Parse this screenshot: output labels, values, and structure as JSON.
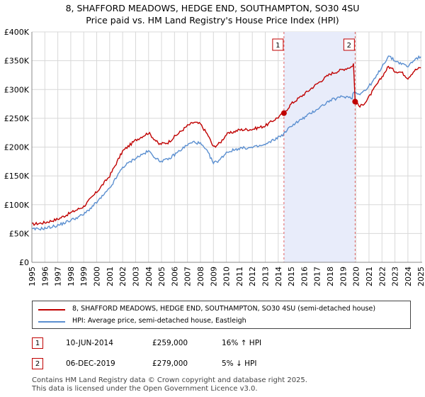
{
  "title_line1": "8, SHAFFORD MEADOWS, HEDGE END, SOUTHAMPTON, SO30 4SU",
  "title_line2": "Price paid vs. HM Land Registry's House Price Index (HPI)",
  "chart_data": {
    "type": "line",
    "x_range": [
      1995,
      2025.1
    ],
    "ylim": [
      0,
      400000
    ],
    "y_ticks": [
      0,
      50000,
      100000,
      150000,
      200000,
      250000,
      300000,
      350000,
      400000
    ],
    "y_tick_labels": [
      "£0",
      "£50K",
      "£100K",
      "£150K",
      "£200K",
      "£250K",
      "£300K",
      "£350K",
      "£400K"
    ],
    "x_ticks": [
      1995,
      1996,
      1997,
      1998,
      1999,
      2000,
      2001,
      2002,
      2003,
      2004,
      2005,
      2006,
      2007,
      2008,
      2009,
      2010,
      2011,
      2012,
      2013,
      2014,
      2015,
      2016,
      2017,
      2018,
      2019,
      2020,
      2021,
      2022,
      2023,
      2024,
      2025
    ],
    "grid": true,
    "shaded_region": [
      2014.44,
      2019.93
    ],
    "series": [
      {
        "name": "8, SHAFFORD MEADOWS, HEDGE END, SOUTHAMPTON, SO30 4SU (semi-detached house)",
        "color": "#c00000",
        "x": [
          1995,
          1996,
          1997,
          1998,
          1999,
          2000,
          2001,
          2002,
          2003,
          2004,
          2004.8,
          2005.5,
          2006,
          2007,
          2007.5,
          2008,
          2008.6,
          2009,
          2009.5,
          2010,
          2011,
          2012,
          2013,
          2014,
          2014.44,
          2015,
          2016,
          2017,
          2018,
          2019,
          2019.7,
          2019.8,
          2019.93,
          2020.3,
          2020.8,
          2021.5,
          2022,
          2022.5,
          2023,
          2023.5,
          2024,
          2024.5,
          2025
        ],
        "y": [
          66000,
          69000,
          75000,
          86000,
          97000,
          122000,
          150000,
          193000,
          212000,
          225000,
          205000,
          208000,
          218000,
          237000,
          243000,
          240000,
          220000,
          200000,
          207000,
          222000,
          230000,
          231000,
          237000,
          252000,
          259000,
          275000,
          292000,
          310000,
          327000,
          335000,
          340000,
          345000,
          279000,
          270000,
          280000,
          305000,
          322000,
          340000,
          332000,
          330000,
          320000,
          333000,
          338000
        ]
      },
      {
        "name": "HPI: Average price, semi-detached house, Eastleigh",
        "color": "#5b8fd0",
        "x": [
          1995,
          1996,
          1997,
          1998,
          1999,
          2000,
          2001,
          2002,
          2003,
          2004,
          2004.8,
          2005.5,
          2006,
          2007,
          2007.5,
          2008,
          2008.6,
          2009,
          2009.5,
          2010,
          2011,
          2012,
          2013,
          2014,
          2014.44,
          2015,
          2016,
          2017,
          2018,
          2019,
          2019.7,
          2019.8,
          2019.93,
          2020.3,
          2020.8,
          2021.5,
          2022,
          2022.5,
          2023,
          2023.5,
          2024,
          2024.5,
          2025
        ],
        "y": [
          57000,
          59000,
          64000,
          73000,
          83000,
          104000,
          128000,
          165000,
          181000,
          193000,
          176000,
          178000,
          187000,
          204000,
          209000,
          206000,
          190000,
          172000,
          178000,
          191000,
          198000,
          199000,
          204000,
          217000,
          223000,
          237000,
          251000,
          266000,
          281000,
          288000,
          286000,
          296000,
          295000,
          293000,
          300000,
          320000,
          340000,
          358000,
          350000,
          345000,
          340000,
          352000,
          357000
        ]
      }
    ],
    "markers": [
      {
        "label": "1",
        "x": 2014.44,
        "y": 259000
      },
      {
        "label": "2",
        "x": 2019.93,
        "y": 279000
      }
    ]
  },
  "legend": {
    "red_label": "8, SHAFFORD MEADOWS, HEDGE END, SOUTHAMPTON, SO30 4SU (semi-detached house)",
    "blue_label": "HPI: Average price, semi-detached house, Eastleigh"
  },
  "sales": [
    {
      "num": "1",
      "date": "10-JUN-2014",
      "price": "£259,000",
      "hpi": "16% ↑ HPI"
    },
    {
      "num": "2",
      "date": "06-DEC-2019",
      "price": "£279,000",
      "hpi": "5% ↓ HPI"
    }
  ],
  "footer_line1": "Contains HM Land Registry data © Crown copyright and database right 2025.",
  "footer_line2": "This data is licensed under the Open Government Licence v3.0."
}
